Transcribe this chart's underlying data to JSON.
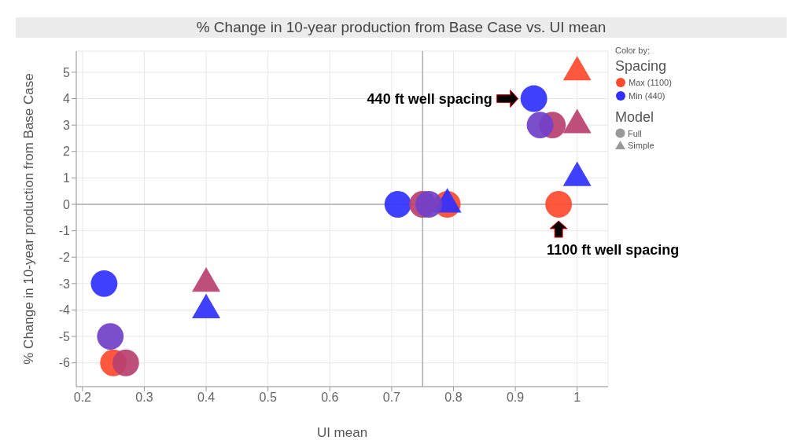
{
  "chart_data": {
    "type": "scatter",
    "title": "% Change in 10-year production from Base Case vs. UI mean",
    "xlabel": "UI mean",
    "ylabel": "% Change in 10-year production from Base Case",
    "legend_title": "Color by:",
    "legend": "right",
    "grid": true,
    "xlim": [
      0.19,
      1.05
    ],
    "xticks": [
      0.2,
      0.3,
      0.4,
      0.5,
      0.6,
      0.7,
      0.8,
      0.9,
      1
    ],
    "ylim": [
      -6.9,
      5.8
    ],
    "yticks": [
      -6,
      -5,
      -4,
      -3,
      -2,
      -1,
      0,
      1,
      2,
      3,
      4,
      5
    ],
    "ref_lines": [
      {
        "axis": "x",
        "value": 0.75,
        "color": "#888888"
      },
      {
        "axis": "y",
        "value": 0,
        "color": "#888888"
      }
    ],
    "annotations": [
      "Spacing",
      "Model",
      "Full",
      "Simple",
      {
        "text": "440 ft well spacing",
        "x": 0.93,
        "y": 4
      },
      {
        "text": "1100 ft well spacing",
        "x": 0.97,
        "y": 0
      }
    ],
    "series": [
      {
        "name": "Max (1100)",
        "color": "#ff4a2e",
        "marker": "circle",
        "x": [
          0.25,
          0.79,
          0.97
        ],
        "values": [
          -6,
          0,
          0
        ]
      },
      {
        "color": "#ff4a2e",
        "marker": "triangle",
        "x": [
          1
        ],
        "values": [
          5
        ]
      },
      {
        "name": "Min (440)",
        "color": "#3030ff",
        "marker": "circle",
        "x": [
          0.235,
          0.71,
          0.93
        ],
        "values": [
          -3,
          0,
          4
        ]
      },
      {
        "color": "#3030ff",
        "marker": "triangle",
        "x": [
          0.4,
          0.79,
          1
        ],
        "values": [
          -4,
          0,
          1
        ]
      },
      {
        "color": "#b84070",
        "marker": "circle",
        "x": [
          0.27,
          0.75,
          0.96
        ],
        "values": [
          -6,
          0,
          3
        ]
      },
      {
        "color": "#b84070",
        "marker": "triangle",
        "x": [
          0.4,
          1
        ],
        "values": [
          -3,
          3
        ]
      },
      {
        "color": "#7040c8",
        "marker": "circle",
        "x": [
          0.245,
          0.76,
          0.94
        ],
        "values": [
          -5,
          0,
          3
        ]
      }
    ]
  }
}
